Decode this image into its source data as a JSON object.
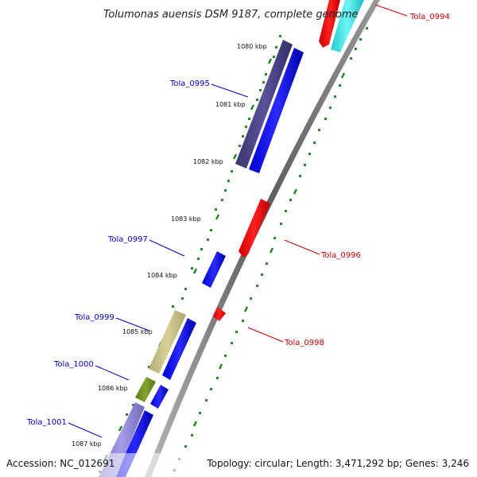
{
  "title": "Tolumonas auensis DSM 9187, complete genome",
  "accession": "Accession: NC_012691",
  "topology": "Topology: circular; Length: 3,471,292 bp; Genes: 3,246",
  "ticks": [
    "1080 kbp",
    "1081 kbp",
    "1082 kbp",
    "1083 kbp",
    "1084 kbp",
    "1085 kbp",
    "1086 kbp",
    "1087 kbp"
  ],
  "gene_labels": {
    "tola_0994": "Tola_0994",
    "tola_0995": "Tola_0995",
    "tola_0996": "Tola_0996",
    "tola_0997": "Tola_0997",
    "tola_0998": "Tola_0998",
    "tola_0999": "Tola_0999",
    "tola_1000": "Tola_1000",
    "tola_1001": "Tola_1001"
  },
  "colors": {
    "forward_cds": "#0000ee",
    "reverse_cds": "#ee0000",
    "backbone": "#888888",
    "tick_dots": "#228822",
    "label_blue": "#0000cc",
    "label_red": "#cc0000"
  }
}
